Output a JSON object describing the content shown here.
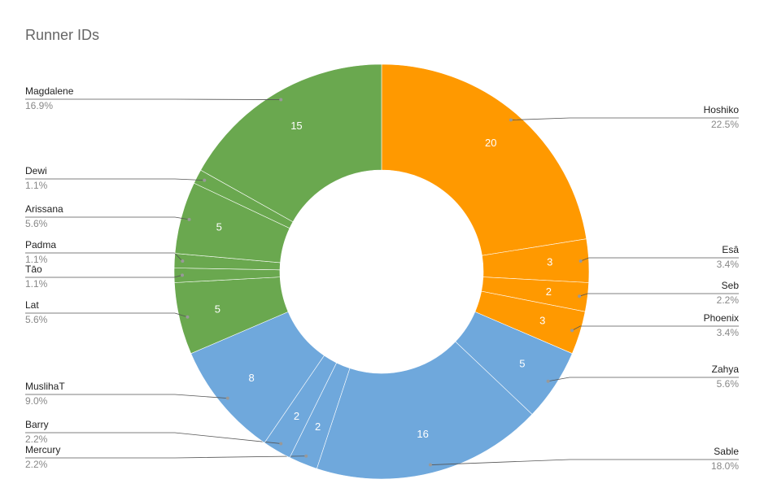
{
  "chart_data": {
    "type": "donut",
    "title": "Runner IDs",
    "categories": [
      "Hoshiko",
      "Esâ",
      "Seb",
      "Phoenix",
      "Zahya",
      "Sable",
      "Mercury",
      "Barry",
      "MuslihaT",
      "Lat",
      "Tāo",
      "Padma",
      "Arissana",
      "Dewi",
      "Magdalene"
    ],
    "values": [
      20,
      3,
      2,
      3,
      5,
      16,
      2,
      2,
      8,
      5,
      1,
      1,
      5,
      1,
      15
    ],
    "percent_labels": [
      "22.5%",
      "3.4%",
      "2.2%",
      "3.4%",
      "5.6%",
      "18.0%",
      "2.2%",
      "2.2%",
      "9.0%",
      "5.6%",
      "1.1%",
      "1.1%",
      "5.6%",
      "1.1%",
      "16.9%"
    ],
    "colors": [
      "#ff9900",
      "#ff9900",
      "#ff9900",
      "#ff9900",
      "#6fa8dc",
      "#6fa8dc",
      "#6fa8dc",
      "#6fa8dc",
      "#6fa8dc",
      "#6aa84f",
      "#6aa84f",
      "#6aa84f",
      "#6aa84f",
      "#6aa84f",
      "#6aa84f"
    ]
  }
}
